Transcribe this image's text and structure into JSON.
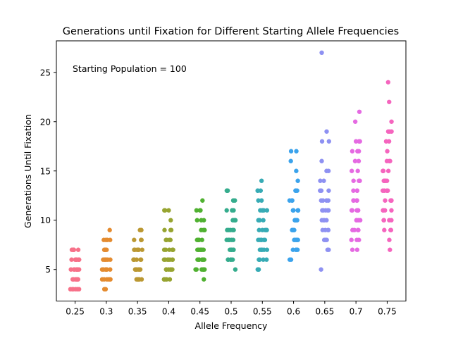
{
  "chart_data": {
    "type": "scatter",
    "title": "Generations until Fixation for Different Starting Allele Frequencies",
    "xlabel": "Allele Frequency",
    "ylabel": "Generations Until Fixation",
    "annotation": "Starting Population = 100",
    "categories": [
      "0.25",
      "0.3",
      "0.35",
      "0.4",
      "0.45",
      "0.5",
      "0.55",
      "0.6",
      "0.65",
      "0.7",
      "0.75"
    ],
    "ylim": [
      1.8,
      28.2
    ],
    "yticks": [
      5,
      10,
      15,
      20,
      25
    ],
    "grid": false,
    "colors": [
      "#f77189",
      "#e48b2f",
      "#bb9832",
      "#97a431",
      "#50b131",
      "#35ac8d",
      "#37abb5",
      "#3ba3ec",
      "#8e91f2",
      "#e56ae2",
      "#f565be"
    ],
    "series": [
      {
        "category": "0.25",
        "values": [
          3,
          3,
          3,
          3,
          3,
          3,
          4,
          4,
          4,
          4,
          4,
          4,
          4,
          4,
          5,
          5,
          5,
          5,
          5,
          5,
          5,
          5,
          6,
          6,
          6,
          6,
          6,
          6,
          6,
          6,
          7,
          7,
          7,
          7,
          7,
          7
        ]
      },
      {
        "category": "0.3",
        "values": [
          3,
          3,
          4,
          4,
          4,
          4,
          4,
          4,
          5,
          5,
          5,
          5,
          5,
          5,
          6,
          6,
          6,
          6,
          6,
          6,
          7,
          7,
          7,
          7,
          7,
          7,
          8,
          8,
          8,
          8,
          9
        ]
      },
      {
        "category": "0.35",
        "values": [
          4,
          4,
          4,
          4,
          4,
          4,
          4,
          5,
          5,
          5,
          5,
          5,
          5,
          5,
          6,
          6,
          6,
          6,
          6,
          6,
          6,
          7,
          7,
          7,
          7,
          7,
          7,
          8,
          8,
          8,
          8,
          9,
          9,
          9
        ]
      },
      {
        "category": "0.4",
        "values": [
          4,
          4,
          4,
          4,
          4,
          4,
          5,
          5,
          5,
          5,
          5,
          5,
          5,
          6,
          6,
          6,
          6,
          6,
          6,
          6,
          7,
          7,
          7,
          7,
          7,
          7,
          8,
          8,
          8,
          8,
          8,
          9,
          9,
          9,
          10,
          11,
          11,
          11
        ]
      },
      {
        "category": "0.45",
        "values": [
          4,
          5,
          5,
          5,
          5,
          5,
          5,
          5,
          6,
          6,
          6,
          6,
          6,
          6,
          6,
          7,
          7,
          7,
          7,
          7,
          7,
          7,
          8,
          8,
          8,
          8,
          8,
          9,
          9,
          9,
          9,
          10,
          10,
          10,
          11,
          11,
          11,
          12
        ]
      },
      {
        "category": "0.5",
        "values": [
          5,
          6,
          6,
          6,
          6,
          6,
          7,
          7,
          7,
          7,
          7,
          7,
          8,
          8,
          8,
          8,
          8,
          8,
          9,
          9,
          9,
          9,
          9,
          10,
          10,
          10,
          10,
          10,
          11,
          11,
          11,
          12,
          12,
          13,
          13,
          13
        ]
      },
      {
        "category": "0.55",
        "values": [
          5,
          5,
          5,
          6,
          6,
          6,
          6,
          6,
          7,
          7,
          7,
          7,
          7,
          8,
          8,
          8,
          8,
          8,
          8,
          9,
          9,
          9,
          9,
          9,
          10,
          10,
          10,
          10,
          10,
          11,
          11,
          11,
          11,
          11,
          12,
          12,
          13,
          13,
          13,
          14
        ]
      },
      {
        "category": "0.6",
        "values": [
          6,
          6,
          7,
          7,
          7,
          7,
          8,
          8,
          8,
          8,
          8,
          9,
          9,
          9,
          9,
          9,
          10,
          10,
          10,
          10,
          10,
          10,
          11,
          11,
          11,
          11,
          11,
          12,
          12,
          12,
          13,
          13,
          13,
          14,
          15,
          16,
          17,
          17
        ]
      },
      {
        "category": "0.65",
        "values": [
          5,
          7,
          7,
          8,
          8,
          8,
          8,
          9,
          9,
          9,
          9,
          10,
          10,
          10,
          10,
          11,
          11,
          11,
          11,
          11,
          12,
          12,
          12,
          12,
          13,
          13,
          13,
          14,
          14,
          15,
          15,
          16,
          18,
          18,
          19,
          27
        ]
      },
      {
        "category": "0.7",
        "values": [
          7,
          7,
          8,
          8,
          8,
          9,
          9,
          9,
          9,
          10,
          10,
          10,
          10,
          11,
          11,
          11,
          11,
          11,
          12,
          12,
          12,
          12,
          13,
          13,
          13,
          14,
          14,
          14,
          15,
          15,
          16,
          16,
          17,
          17,
          17,
          18,
          18,
          18,
          20,
          21
        ]
      },
      {
        "category": "0.75",
        "values": [
          7,
          8,
          9,
          9,
          9,
          10,
          10,
          10,
          10,
          11,
          11,
          11,
          11,
          12,
          12,
          12,
          12,
          13,
          13,
          13,
          13,
          14,
          14,
          14,
          14,
          15,
          15,
          15,
          15,
          16,
          16,
          16,
          17,
          18,
          18,
          19,
          19,
          19,
          20,
          22,
          24
        ]
      }
    ]
  }
}
